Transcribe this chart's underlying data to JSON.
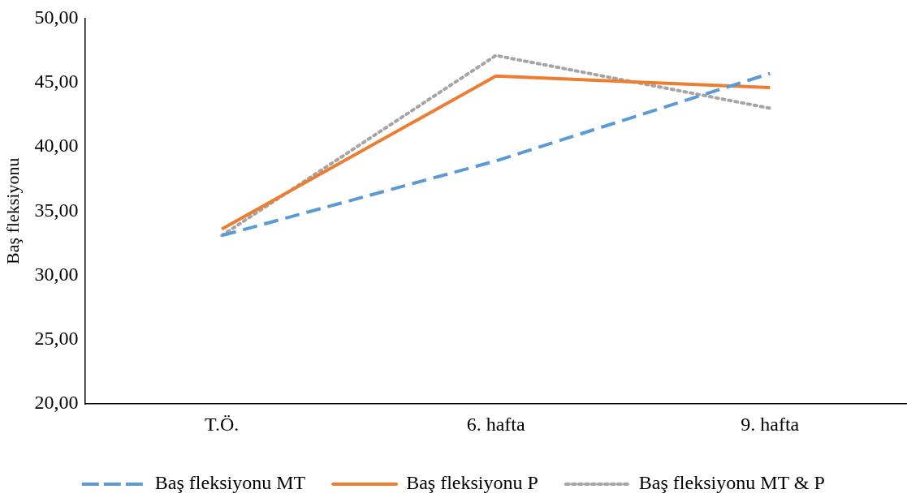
{
  "chart_data": {
    "type": "line",
    "ylabel": "Baş fleksiyonu",
    "categories": [
      "T.Ö.",
      "6. hafta",
      "9. hafta"
    ],
    "series": [
      {
        "name": "Baş fleksiyonu MT",
        "color": "#5b9bd5",
        "values": [
          33.1,
          38.9,
          45.7
        ],
        "line_style": "dashed"
      },
      {
        "name": "Baş fleksiyonu P",
        "color": "#ed7d31",
        "values": [
          33.6,
          45.5,
          44.6
        ],
        "line_style": "solid"
      },
      {
        "name": "Baş fleksiyonu MT & P",
        "color": "#a5a5a5",
        "values": [
          33.1,
          47.1,
          43.0
        ],
        "line_style": "dotted"
      }
    ],
    "ylim": [
      20,
      50
    ],
    "yticks": [
      {
        "value": 20,
        "label": "20,00"
      },
      {
        "value": 25,
        "label": "25,00"
      },
      {
        "value": 30,
        "label": "30,00"
      },
      {
        "value": 35,
        "label": "35,00"
      },
      {
        "value": 40,
        "label": "40,00"
      },
      {
        "value": 45,
        "label": "45,00"
      },
      {
        "value": 50,
        "label": "50,00"
      }
    ],
    "grid": false,
    "legend": "bottom",
    "marker": "none"
  }
}
